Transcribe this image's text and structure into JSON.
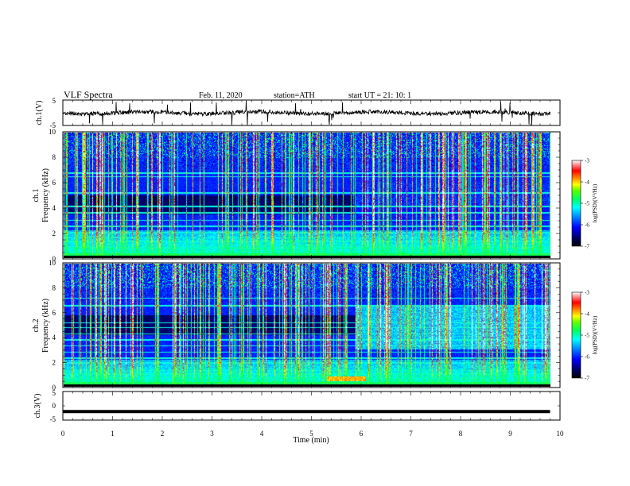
{
  "header": {
    "title": "VLF  Spectra",
    "date": "Feb. 11, 2020",
    "station": "station=ATH",
    "start": "start  UT  =    21: 10: 1"
  },
  "chart_data": [
    {
      "type": "line",
      "panel": "ch1_waveform",
      "ylabel": "ch.1(V)",
      "ylim": [
        -5,
        5
      ],
      "yticks": [
        "5",
        "-5"
      ],
      "xlim": [
        0,
        10
      ],
      "x_end": 9.8,
      "baseline": 0,
      "amplitude_note": "noisy trace around 0 V with spikes",
      "color": "#000000"
    },
    {
      "type": "heatmap",
      "panel": "ch1_spectrogram",
      "ylabel_line1": "ch.1",
      "ylabel_line2": "Frequency  (kHz)",
      "ylim": [
        0,
        10
      ],
      "yticks": [
        "0",
        "2",
        "4",
        "6",
        "8",
        "10"
      ],
      "xlim": [
        0,
        10
      ],
      "x_end": 9.8,
      "colorbar": {
        "label": "log(PSD)(V²/Hz)",
        "ticks": [
          "-3",
          "-4",
          "-5",
          "-6",
          "-7"
        ],
        "range": [
          -7,
          -3
        ]
      },
      "features": {
        "quiet_band_khz": [
          3.5,
          5.0
        ],
        "transition_min": 5.85,
        "lines_khz": [
          0.2,
          0.5,
          0.8,
          1.3,
          1.6,
          2.0,
          2.5,
          3.0,
          3.6,
          4.1,
          5.2,
          6.5,
          6.8
        ],
        "sferic_density": "high"
      }
    },
    {
      "type": "heatmap",
      "panel": "ch2_spectrogram",
      "ylabel_line1": "ch.2",
      "ylabel_line2": "Frequency  (kHz)",
      "ylim": [
        0,
        10
      ],
      "yticks": [
        "0",
        "2",
        "4",
        "6",
        "8",
        "10"
      ],
      "xlim": [
        0,
        10
      ],
      "x_end": 9.8,
      "colorbar": {
        "label": "log(PSD)(V²/Hz)",
        "ticks": [
          "-3",
          "-4",
          "-5",
          "-6",
          "-7"
        ],
        "range": [
          -7,
          -3
        ]
      },
      "features": {
        "quiet_band_khz": [
          4.2,
          5.8
        ],
        "transition_min": 5.85,
        "lines_khz": [
          0.3,
          0.7,
          1.0,
          1.3,
          1.9,
          2.3,
          2.8,
          3.3,
          3.8,
          4.3,
          4.8,
          5.2,
          6.6,
          7.2
        ],
        "sferic_density": "high"
      }
    },
    {
      "type": "line",
      "panel": "ch3_waveform",
      "ylabel": "ch.3(V)",
      "ylim": [
        -5,
        5
      ],
      "yticks": [
        "5",
        "0",
        "-5"
      ],
      "xlim": [
        0,
        10
      ],
      "xticks": [
        "0",
        "1",
        "2",
        "3",
        "4",
        "5",
        "6",
        "7",
        "8",
        "9",
        "10"
      ],
      "xlabel": "Time  (min)",
      "x_end": 9.8,
      "baseline": -2,
      "color": "#000000"
    }
  ]
}
